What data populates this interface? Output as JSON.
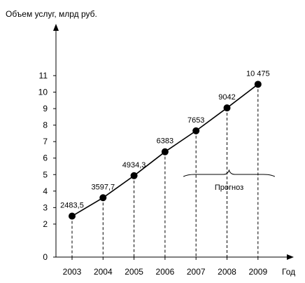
{
  "chart_data": {
    "type": "line",
    "ylabel": "Объем услуг, млрд руб.",
    "xlabel": "Год",
    "x": [
      "2003",
      "2004",
      "2005",
      "2006",
      "2007",
      "2008",
      "2009"
    ],
    "values": [
      2483.5,
      3597.7,
      4934.3,
      6383,
      7653,
      9042,
      10475
    ],
    "data_labels": [
      "2483,5",
      "3597,7",
      "4934,3",
      "6383",
      "7653",
      "9042",
      "10 475"
    ],
    "y_ticks": [
      "0",
      "2",
      "3",
      "4",
      "5",
      "6",
      "7",
      "8",
      "9",
      "10",
      "11"
    ],
    "y_unit_divisor": 1000,
    "ylim": [
      0,
      11
    ],
    "forecast": {
      "label": "Прогноз",
      "from": "2007",
      "to": "2009"
    },
    "grid": false,
    "colors": {
      "line": "#000000",
      "marker": "#000000"
    }
  }
}
